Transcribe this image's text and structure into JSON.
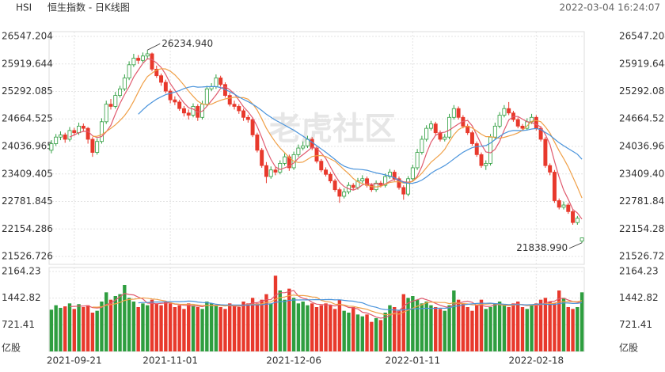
{
  "chart_data": {
    "type": "candlestick",
    "title": "HSI",
    "subtitle": "恒生指数 - 日K线图",
    "timestamp": "2022-03-04 16:24:07",
    "watermark": "老虎社区",
    "up_color": "#2e9e3f",
    "down_color": "#e8392c",
    "categories": [
      null,
      null,
      null,
      null,
      null,
      "2021-09-21",
      null,
      null,
      null,
      null,
      null,
      null,
      null,
      null,
      null,
      null,
      null,
      null,
      null,
      null,
      null,
      null,
      null,
      null,
      null,
      null,
      "2021-11-01",
      null,
      null,
      null,
      null,
      null,
      null,
      null,
      null,
      null,
      null,
      null,
      null,
      null,
      null,
      null,
      null,
      null,
      null,
      null,
      null,
      null,
      null,
      null,
      null,
      null,
      null,
      "2021-12-06",
      null,
      null,
      null,
      null,
      null,
      null,
      null,
      null,
      null,
      null,
      null,
      null,
      null,
      null,
      null,
      null,
      null,
      null,
      null,
      null,
      null,
      null,
      null,
      null,
      null,
      "2022-01-11",
      null,
      null,
      null,
      null,
      null,
      null,
      null,
      null,
      null,
      null,
      null,
      null,
      null,
      null,
      null,
      null,
      null,
      null,
      null,
      null,
      null,
      null,
      null,
      null,
      null,
      null,
      "2022-02-18",
      null,
      null,
      null,
      null,
      null,
      null,
      null,
      null,
      null,
      null
    ],
    "ohlc": [
      [
        23950,
        24180,
        23880,
        24100
      ],
      [
        24100,
        24320,
        24050,
        24250
      ],
      [
        24250,
        24380,
        24180,
        24300
      ],
      [
        24300,
        24350,
        24120,
        24200
      ],
      [
        24200,
        24480,
        24150,
        24400
      ],
      [
        24400,
        24460,
        24280,
        24350
      ],
      [
        24350,
        24580,
        24300,
        24500
      ],
      [
        24500,
        24560,
        24380,
        24450
      ],
      [
        24450,
        24480,
        24100,
        24200
      ],
      [
        24200,
        24250,
        23800,
        23900
      ],
      [
        23900,
        24220,
        23850,
        24150
      ],
      [
        24150,
        24680,
        24100,
        24600
      ],
      [
        24600,
        25080,
        24550,
        25000
      ],
      [
        25000,
        25120,
        24880,
        24950
      ],
      [
        24950,
        25280,
        24900,
        25200
      ],
      [
        25200,
        25420,
        25150,
        25350
      ],
      [
        25350,
        25680,
        25300,
        25600
      ],
      [
        25600,
        25980,
        25550,
        25900
      ],
      [
        25900,
        26150,
        25850,
        26050
      ],
      [
        26050,
        26120,
        25920,
        26000
      ],
      [
        26000,
        26180,
        25950,
        26100
      ],
      [
        26100,
        26234.94,
        26020,
        26150
      ],
      [
        26150,
        26180,
        25750,
        25800
      ],
      [
        25800,
        25880,
        25600,
        25650
      ],
      [
        25650,
        25700,
        25420,
        25500
      ],
      [
        25500,
        25560,
        25250,
        25300
      ],
      [
        25300,
        25350,
        25020,
        25100
      ],
      [
        25100,
        25180,
        24980,
        25050
      ],
      [
        25050,
        25100,
        24850,
        24900
      ],
      [
        24900,
        24960,
        24720,
        24800
      ],
      [
        24800,
        24880,
        24650,
        24750
      ],
      [
        24750,
        25020,
        24700,
        24950
      ],
      [
        24950,
        25000,
        24620,
        24700
      ],
      [
        24700,
        25080,
        24650,
        25000
      ],
      [
        25000,
        25420,
        24950,
        25350
      ],
      [
        25350,
        25480,
        25300,
        25400
      ],
      [
        25400,
        25680,
        25350,
        25600
      ],
      [
        25600,
        25650,
        25400,
        25450
      ],
      [
        25450,
        25500,
        25150,
        25200
      ],
      [
        25200,
        25260,
        24950,
        25000
      ],
      [
        25000,
        25080,
        24880,
        24950
      ],
      [
        24950,
        25000,
        24780,
        24850
      ],
      [
        24850,
        24900,
        24620,
        24700
      ],
      [
        24700,
        24760,
        24580,
        24650
      ],
      [
        24650,
        24700,
        24250,
        24300
      ],
      [
        24300,
        24350,
        23900,
        23950
      ],
      [
        23950,
        24000,
        23550,
        23600
      ],
      [
        23600,
        23680,
        23200,
        23350
      ],
      [
        23350,
        23580,
        23300,
        23500
      ],
      [
        23500,
        23560,
        23380,
        23450
      ],
      [
        23450,
        23720,
        23400,
        23650
      ],
      [
        23650,
        23880,
        23600,
        23800
      ],
      [
        23800,
        23850,
        23480,
        23550
      ],
      [
        23550,
        23920,
        23500,
        23850
      ],
      [
        23850,
        24080,
        23800,
        24000
      ],
      [
        24000,
        24150,
        23950,
        24050
      ],
      [
        24050,
        24280,
        24000,
        24200
      ],
      [
        24200,
        24250,
        23950,
        24000
      ],
      [
        24000,
        24050,
        23650,
        23700
      ],
      [
        23700,
        23750,
        23450,
        23500
      ],
      [
        23500,
        23560,
        23350,
        23400
      ],
      [
        23400,
        23450,
        23200,
        23250
      ],
      [
        23250,
        23300,
        23000,
        23050
      ],
      [
        23050,
        23100,
        22750,
        22900
      ],
      [
        22900,
        23080,
        22850,
        23000
      ],
      [
        23000,
        23220,
        22950,
        23150
      ],
      [
        23150,
        23200,
        23050,
        23100
      ],
      [
        23100,
        23320,
        23050,
        23250
      ],
      [
        23250,
        23380,
        23200,
        23300
      ],
      [
        23300,
        23350,
        23100,
        23150
      ],
      [
        23150,
        23200,
        23000,
        23050
      ],
      [
        23050,
        23260,
        23000,
        23200
      ],
      [
        23200,
        23250,
        23100,
        23150
      ],
      [
        23150,
        23420,
        23100,
        23350
      ],
      [
        23350,
        23520,
        23300,
        23450
      ],
      [
        23450,
        23500,
        23250,
        23300
      ],
      [
        23300,
        23350,
        23050,
        23100
      ],
      [
        23100,
        23150,
        22820,
        22950
      ],
      [
        22950,
        23360,
        22900,
        23300
      ],
      [
        23300,
        23620,
        23250,
        23550
      ],
      [
        23550,
        23980,
        23500,
        23900
      ],
      [
        23900,
        24280,
        23850,
        24200
      ],
      [
        24200,
        24520,
        24150,
        24450
      ],
      [
        24450,
        24620,
        24400,
        24550
      ],
      [
        24550,
        24600,
        24300,
        24350
      ],
      [
        24350,
        24400,
        24150,
        24200
      ],
      [
        24200,
        24320,
        24150,
        24250
      ],
      [
        24250,
        24780,
        24200,
        24700
      ],
      [
        24700,
        24980,
        24650,
        24900
      ],
      [
        24900,
        24950,
        24650,
        24700
      ],
      [
        24700,
        24750,
        24450,
        24500
      ],
      [
        24500,
        24550,
        24300,
        24350
      ],
      [
        24350,
        24400,
        24050,
        24100
      ],
      [
        24100,
        24150,
        23800,
        23850
      ],
      [
        23850,
        23900,
        23550,
        23600
      ],
      [
        23600,
        23720,
        23500,
        23650
      ],
      [
        23650,
        24320,
        23600,
        24250
      ],
      [
        24250,
        24580,
        24200,
        24500
      ],
      [
        24500,
        24820,
        24450,
        24750
      ],
      [
        24750,
        24980,
        24700,
        24900
      ],
      [
        24900,
        25050,
        24750,
        24800
      ],
      [
        24800,
        24850,
        24600,
        24650
      ],
      [
        24650,
        24700,
        24450,
        24500
      ],
      [
        24500,
        24550,
        24400,
        24450
      ],
      [
        24450,
        24680,
        24400,
        24600
      ],
      [
        24600,
        24780,
        24550,
        24700
      ],
      [
        24700,
        24750,
        24400,
        24450
      ],
      [
        24450,
        24500,
        24150,
        24200
      ],
      [
        24200,
        24250,
        23550,
        23600
      ],
      [
        23600,
        23650,
        23380,
        23450
      ],
      [
        23450,
        23500,
        22750,
        22800
      ],
      [
        22800,
        22850,
        22600,
        22650
      ],
      [
        22650,
        22780,
        22600,
        22700
      ],
      [
        22700,
        22750,
        22500,
        22550
      ],
      [
        22550,
        22600,
        22250,
        22300
      ],
      [
        22300,
        22450,
        22250,
        22400
      ],
      [
        21880,
        21960,
        21838.99,
        21950
      ]
    ],
    "volume": [
      1130,
      1250,
      1180,
      1220,
      1300,
      1150,
      1280,
      1200,
      1250,
      1050,
      1100,
      1350,
      1600,
      1400,
      1500,
      1550,
      1800,
      1450,
      1350,
      1200,
      1300,
      1250,
      1400,
      1300,
      1250,
      1350,
      1300,
      1200,
      1250,
      1150,
      1300,
      1250,
      1200,
      1150,
      1350,
      1300,
      1250,
      1200,
      1150,
      1300,
      1250,
      1200,
      1350,
      1300,
      1450,
      1300,
      1400,
      1550,
      1300,
      2050,
      1650,
      1400,
      1700,
      1450,
      1300,
      1350,
      1250,
      1300,
      1200,
      1250,
      1300,
      1250,
      1150,
      1400,
      1100,
      1050,
      1200,
      1000,
      950,
      1000,
      800,
      900,
      850,
      1050,
      1250,
      1200,
      1100,
      1550,
      1450,
      1500,
      1400,
      1300,
      1350,
      1250,
      1200,
      1150,
      1100,
      1250,
      1650,
      1400,
      1300,
      1200,
      1100,
      1250,
      1400,
      1150,
      1200,
      1300,
      1350,
      1250,
      1200,
      1300,
      1350,
      1200,
      1150,
      1250,
      1300,
      1400,
      1450,
      1350,
      1300,
      1650,
      1450,
      1200,
      1150,
      1200,
      1600
    ],
    "moving_averages": [
      {
        "period": 5,
        "color": "#e05a6e"
      },
      {
        "period": 10,
        "color": "#f0a048"
      },
      {
        "period": 20,
        "color": "#4a94dc"
      }
    ],
    "volume_moving_averages": [
      {
        "period": 5,
        "color": "#e05a6e"
      },
      {
        "period": 10,
        "color": "#f0a048"
      },
      {
        "period": 20,
        "color": "#4a94dc"
      }
    ],
    "ylim": [
      21526.726,
      26547.204
    ],
    "yticks": [
      21526.726,
      22154.286,
      22781.845,
      23409.405,
      24036.965,
      24664.525,
      25292.085,
      25919.644,
      26547.204
    ],
    "y2lim": [
      0,
      2164.23
    ],
    "y2ticks": [
      {
        "value": 0,
        "label": "亿股"
      },
      721.41,
      1442.82,
      2164.23
    ],
    "high_label": {
      "value": 26234.94,
      "label": "26234.940"
    },
    "low_label": {
      "value": 21838.99,
      "label": "21838.990"
    },
    "grid": true
  }
}
